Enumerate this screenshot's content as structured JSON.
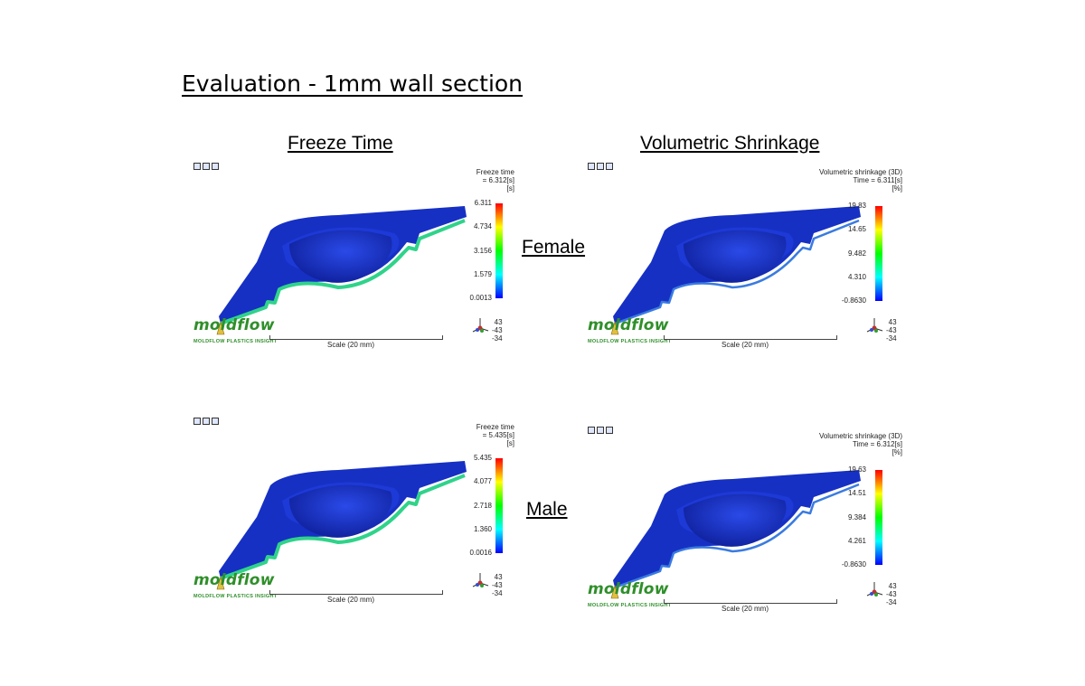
{
  "slide": {
    "title": "Evaluation - 1mm wall section",
    "columns": {
      "left": "Freeze Time",
      "right": "Volumetric Shrinkage"
    },
    "rows": {
      "top": "Female",
      "bottom": "Male"
    }
  },
  "brand": {
    "logo": "moldflow",
    "subtitle": "Moldflow Plastics Insight"
  },
  "scale_label": "Scale (20 mm)",
  "colors": {
    "part_blue": "#1630c4",
    "frozen_green": "#2fd38a",
    "logo_green": "#2f8f2a"
  },
  "panels": [
    {
      "id": "freeze-female",
      "legend_lines": [
        "Freeze time",
        "= 6.312[s]",
        "[s]"
      ],
      "ticks": [
        "6.311",
        "4.734",
        "3.156",
        "1.579",
        "0.0013"
      ],
      "coords": [
        "43",
        "-43",
        "-34"
      ]
    },
    {
      "id": "shrink-female",
      "legend_lines": [
        "Volumetric shrinkage (3D)",
        "Time = 6.311[s]",
        "[%]"
      ],
      "ticks": [
        "19.83",
        "14.65",
        "9.482",
        "4.310",
        "-0.8630"
      ],
      "coords": [
        "43",
        "-43",
        "-34"
      ]
    },
    {
      "id": "freeze-male",
      "legend_lines": [
        "Freeze time",
        "= 5.435[s]",
        "[s]"
      ],
      "ticks": [
        "5.435",
        "4.077",
        "2.718",
        "1.360",
        "0.0016"
      ],
      "coords": [
        "43",
        "-43",
        "-34"
      ]
    },
    {
      "id": "shrink-male",
      "legend_lines": [
        "Volumetric shrinkage (3D)",
        "Time = 6.312[s]",
        "[%]"
      ],
      "ticks": [
        "19.63",
        "14.51",
        "9.384",
        "4.261",
        "-0.8630"
      ],
      "coords": [
        "43",
        "-43",
        "-34"
      ]
    }
  ]
}
